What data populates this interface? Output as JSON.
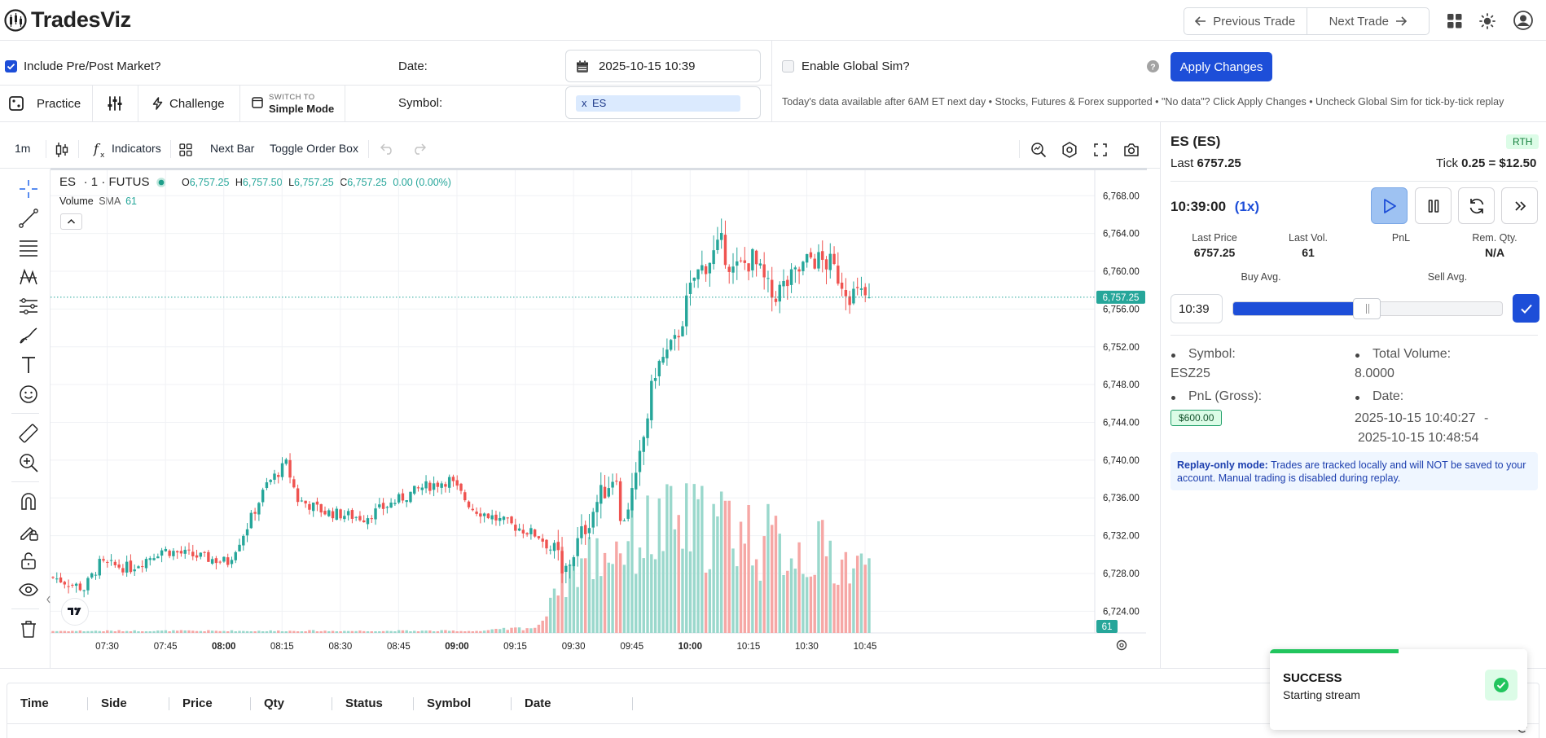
{
  "header": {
    "brand": "TradesViz",
    "prev_trade": "Previous Trade",
    "next_trade": "Next Trade",
    "icons": [
      "arrow-left-icon",
      "arrow-right-icon",
      "grid-icon",
      "sun-icon",
      "user-icon"
    ]
  },
  "settings": {
    "include_prepost_label": "Include Pre/Post Market?",
    "include_prepost_checked": true,
    "date_label": "Date:",
    "date_value": "2025-10-15 10:39",
    "symbol_label": "Symbol:",
    "symbol_tag_remove": "x",
    "symbol_tag": "ES",
    "global_sim_label": "Enable Global Sim?",
    "global_sim_checked": false,
    "apply_label": "Apply Changes",
    "help_icon": "question-icon",
    "info_text": "Today's data available after 6AM ET next day • Stocks, Futures & Forex supported • \"No data\"? Click Apply Changes • Uncheck Global Sim for tick-by-tick replay"
  },
  "modes": {
    "practice": "Practice",
    "challenge": "Challenge",
    "switch_to": "SWITCH TO",
    "simple_mode": "Simple Mode"
  },
  "chart_toolbar": {
    "interval": "1m",
    "indicators": "Indicators",
    "next_bar": "Next Bar",
    "toggle_order_box": "Toggle Order Box"
  },
  "chart_legend": {
    "symbol": "ES",
    "interval_exchange": "· 1 · FUTUS",
    "o_label": "O",
    "o_value": "6,757.25",
    "h_label": "H",
    "h_value": "6,757.50",
    "l_label": "L",
    "l_value": "6,757.25",
    "c_label": "C",
    "c_value": "6,757.25",
    "change": "0.00 (0.00%)",
    "volume_label": "Volume",
    "sma_label": "SMA",
    "sma_value": "61"
  },
  "chart_data": {
    "type": "candlestick",
    "symbol": "ES",
    "interval": "1m",
    "y_ticks": [
      "6,768.00",
      "6,764.00",
      "6,760.00",
      "6,756.00",
      "6,752.00",
      "6,748.00",
      "6,744.00",
      "6,740.00",
      "6,736.00",
      "6,732.00",
      "6,728.00",
      "6,724.00"
    ],
    "ylim": [
      6721.7,
      6770.7
    ],
    "x_ticks": [
      {
        "label": "07:30",
        "bold": false
      },
      {
        "label": "07:45",
        "bold": false
      },
      {
        "label": "08:00",
        "bold": true
      },
      {
        "label": "08:15",
        "bold": false
      },
      {
        "label": "08:30",
        "bold": false
      },
      {
        "label": "08:45",
        "bold": false
      },
      {
        "label": "09:00",
        "bold": true
      },
      {
        "label": "09:15",
        "bold": false
      },
      {
        "label": "09:30",
        "bold": false
      },
      {
        "label": "09:45",
        "bold": false
      },
      {
        "label": "10:00",
        "bold": true
      },
      {
        "label": "10:15",
        "bold": false
      },
      {
        "label": "10:30",
        "bold": false
      },
      {
        "label": "10:45",
        "bold": false
      }
    ],
    "last_price_label": "6,757.25",
    "last_price": 6757.25,
    "volume_label": "61",
    "price_anchors": [
      [
        0,
        6727.6
      ],
      [
        8,
        6726.4
      ],
      [
        12,
        6729.0
      ],
      [
        20,
        6728.6
      ],
      [
        28,
        6730.5
      ],
      [
        45,
        6729.2
      ],
      [
        50,
        6733.0
      ],
      [
        55,
        6737.4
      ],
      [
        60,
        6739.6
      ],
      [
        63,
        6735.8
      ],
      [
        70,
        6734.5
      ],
      [
        80,
        6733.9
      ],
      [
        95,
        6737.1
      ],
      [
        102,
        6737.9
      ],
      [
        108,
        6734.9
      ],
      [
        115,
        6733.6
      ],
      [
        125,
        6732.0
      ],
      [
        130,
        6729.7
      ],
      [
        131,
        6727.4
      ],
      [
        135,
        6731.2
      ],
      [
        140,
        6735.6
      ],
      [
        145,
        6738.9
      ],
      [
        146,
        6733.1
      ],
      [
        150,
        6737.6
      ],
      [
        155,
        6749.6
      ],
      [
        160,
        6752.3
      ],
      [
        165,
        6759.3
      ],
      [
        172,
        6762.8
      ],
      [
        175,
        6760.0
      ],
      [
        180,
        6761.3
      ],
      [
        185,
        6757.3
      ],
      [
        190,
        6759.1
      ],
      [
        195,
        6761.4
      ],
      [
        200,
        6760.7
      ],
      [
        205,
        6757.7
      ],
      [
        210,
        6757.25
      ]
    ],
    "volume_anchors": [
      [
        0,
        1
      ],
      [
        90,
        1
      ],
      [
        110,
        1
      ],
      [
        125,
        3
      ],
      [
        130,
        30
      ],
      [
        150,
        50
      ],
      [
        160,
        55
      ],
      [
        175,
        55
      ],
      [
        185,
        45
      ],
      [
        200,
        40
      ],
      [
        210,
        30
      ]
    ]
  },
  "right_panel": {
    "title": "ES (ES)",
    "badge": "RTH",
    "last_label": "Last",
    "last_value": "6757.25",
    "tick_label": "Tick",
    "tick_value": "0.25 = $12.50",
    "time": "10:39:00",
    "speed": "(1x)",
    "stats": [
      {
        "label": "Last Price",
        "value": "6757.25"
      },
      {
        "label": "Last Vol.",
        "value": "61"
      },
      {
        "label": "PnL",
        "value": ""
      },
      {
        "label": "Rem. Qty.",
        "value": "N/A"
      }
    ],
    "buy_avg_label": "Buy Avg.",
    "sell_avg_label": "Sell Avg.",
    "slider_time": "10:39",
    "slider_fraction": 0.45,
    "details": {
      "symbol_label": "Symbol:",
      "symbol_value": "ESZ25",
      "total_volume_label": "Total Volume:",
      "total_volume_value": "8.0000",
      "pnl_label": "PnL (Gross):",
      "pnl_value": "$600.00",
      "date_label": "Date:",
      "date_from": "2025-10-15 10:40:27",
      "date_sep": "-",
      "date_to": "2025-10-15 10:48:54"
    },
    "replay_notice_bold": "Replay-only mode:",
    "replay_notice_text": "Trades are tracked locally and will NOT be saved to your account. Manual trading is disabled during replay."
  },
  "table": {
    "columns": [
      "Time",
      "Side",
      "Price",
      "Qty",
      "Status",
      "Symbol",
      "Date"
    ]
  },
  "toast": {
    "title": "SUCCESS",
    "message": "Starting stream",
    "progress_fraction": 0.5
  },
  "colors": {
    "accent": "#1d4ed8",
    "up": "#26a69a",
    "down": "#ef5350",
    "up_volume": "#9ad8cc",
    "down_volume": "#f6a7a5",
    "success": "#22c55e"
  }
}
